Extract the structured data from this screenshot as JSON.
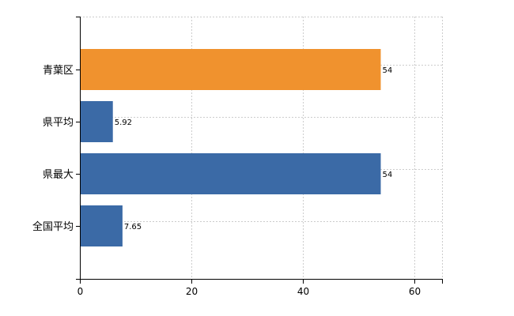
{
  "chart_data": {
    "type": "bar",
    "orientation": "horizontal",
    "categories": [
      "青葉区",
      "県平均",
      "県最大",
      "全国平均"
    ],
    "values": [
      54,
      5.92,
      54,
      7.65
    ],
    "value_labels": [
      "54",
      "5.92",
      "54",
      "7.65"
    ],
    "bar_colors": [
      "#f0922e",
      "#3b6aa6",
      "#3b6aa6",
      "#3b6aa6"
    ],
    "xlim": [
      0,
      65
    ],
    "xticks": [
      0,
      20,
      40,
      60
    ],
    "xtick_labels": [
      "0",
      "20",
      "40",
      "60"
    ],
    "grid": true,
    "legend": "none"
  }
}
